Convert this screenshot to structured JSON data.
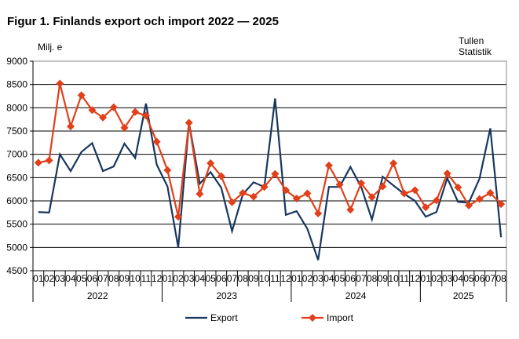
{
  "chart_data": {
    "type": "line",
    "title": "Figur 1. Finlands export och import 2022 — 2025",
    "ylabel": "Milj. e",
    "source": [
      "Tullen",
      "Statistik"
    ],
    "ylim": [
      4500,
      9000
    ],
    "yticks": [
      4500,
      5000,
      5500,
      6000,
      6500,
      7000,
      7500,
      8000,
      8500,
      9000
    ],
    "grid": true,
    "legend_position": "bottom",
    "years": [
      "2022",
      "2023",
      "2024",
      "2025"
    ],
    "months": [
      "01",
      "02",
      "03",
      "04",
      "05",
      "06",
      "07",
      "08",
      "09",
      "10",
      "11",
      "12",
      "01",
      "02",
      "03",
      "04",
      "05",
      "06",
      "07",
      "08",
      "09",
      "10",
      "11",
      "12",
      "01",
      "02",
      "03",
      "04",
      "05",
      "06",
      "07",
      "08",
      "09",
      "10",
      "11",
      "12",
      "01",
      "02",
      "03",
      "04",
      "05",
      "06",
      "07",
      "08"
    ],
    "series": [
      {
        "name": "Export",
        "color": "#17375e",
        "marker": "none",
        "values": [
          5760,
          5750,
          7000,
          6640,
          7050,
          7240,
          6640,
          6740,
          7230,
          6920,
          8090,
          6780,
          6310,
          5000,
          7680,
          6370,
          6620,
          6280,
          5350,
          6140,
          6400,
          6300,
          8200,
          5700,
          5780,
          5400,
          4730,
          6300,
          6300,
          6730,
          6300,
          5600,
          6520,
          6330,
          6150,
          6000,
          5660,
          5760,
          6490,
          5980,
          5960,
          6480,
          7560,
          5220
        ]
      },
      {
        "name": "Import",
        "color": "#e0401a",
        "marker": "diamond",
        "values": [
          6820,
          6870,
          8520,
          7600,
          8270,
          7950,
          7790,
          8010,
          7570,
          7910,
          7830,
          7270,
          6660,
          5660,
          7680,
          6150,
          6810,
          6530,
          5970,
          6170,
          6090,
          6300,
          6580,
          6230,
          6050,
          6160,
          5730,
          6760,
          6350,
          5810,
          6380,
          6080,
          6310,
          6810,
          6160,
          6230,
          5860,
          6010,
          6590,
          6290,
          5900,
          6040,
          6170,
          5930
        ]
      }
    ]
  }
}
